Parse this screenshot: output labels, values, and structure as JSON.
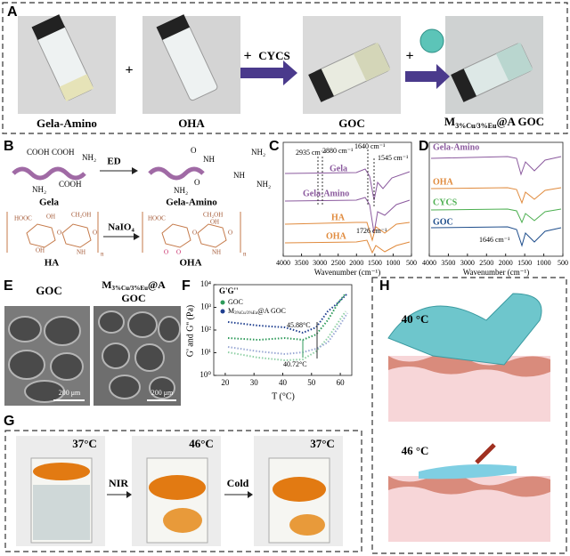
{
  "figure": {
    "A": {
      "label": "A",
      "samples": [
        "Gela-Amino",
        "OHA",
        "GOC"
      ],
      "plus": "+",
      "reagent": "CYCS",
      "composite": {
        "main": "M",
        "sub": "3%Cu/3%Eu",
        "tail": "@A GOC"
      }
    },
    "B": {
      "label": "B",
      "reagent1": "ED",
      "reagent2": "NaIO₄",
      "gela": {
        "name": "Gela",
        "groups": [
          "COOH",
          "COOH",
          "NH₂",
          "NH₂",
          "COOH"
        ]
      },
      "gela_amino": {
        "name": "Gela-Amino",
        "groups": [
          "O",
          "NH",
          "NH₂",
          "NH₂",
          "O",
          "NH",
          "NH₂"
        ]
      },
      "ha": {
        "name": "HA",
        "groups": [
          "HOOC",
          "OH",
          "CH₂OH",
          "O",
          "OH",
          "O",
          "NH",
          "n"
        ]
      },
      "oha": {
        "name": "OHA",
        "groups": [
          "HOOC",
          "CH₂OH",
          "O",
          "O",
          "O",
          "OH",
          "O",
          "NH",
          "n"
        ]
      }
    },
    "C": {
      "label": "C",
      "xlabel": "Wavenumber (cm⁻¹)",
      "xlim": [
        4000,
        500
      ],
      "xticks": [
        4000,
        3500,
        3000,
        2500,
        2000,
        1500,
        1000,
        500
      ],
      "traces": [
        "Gela",
        "Gela-Amino",
        "HA",
        "OHA"
      ],
      "annotations": [
        "2935 cm⁻¹",
        "2880 cm⁻¹",
        "1640 cm⁻¹",
        "1545 cm⁻¹",
        "1726 cm⁻¹"
      ]
    },
    "D": {
      "label": "D",
      "xlabel": "Wavenumber (cm⁻¹)",
      "xlim": [
        4000,
        500
      ],
      "xticks": [
        4000,
        3500,
        3000,
        2500,
        2000,
        1500,
        1000,
        500
      ],
      "traces": [
        "Gela-Amino",
        "OHA",
        "CYCS",
        "GOC"
      ],
      "annotations": [
        "1646 cm⁻¹"
      ]
    },
    "E": {
      "label": "E",
      "titles": [
        "GOC",
        {
          "main": "M",
          "sub": "3%Cu/3%Eu",
          "tail": "@A",
          "line2": "GOC"
        }
      ],
      "scale": [
        "200 μm",
        "200 μm"
      ]
    },
    "F": {
      "label": "F",
      "legend_title": "G'G''",
      "series": [
        "GOC",
        {
          "main": "M",
          "sub": "3%Cu/3%Eu",
          "tail": "@A GOC"
        }
      ],
      "xlabel": "T (°C)",
      "ylabel": "G' and G'' (Pa)",
      "xlim": [
        16,
        64
      ],
      "xticks": [
        20,
        30,
        40,
        50,
        60
      ],
      "ylim": [
        1,
        10000
      ],
      "ylog": true,
      "yticks": [
        {
          "value": 1,
          "label": "10⁰"
        },
        {
          "value": 10,
          "label": "10¹"
        },
        {
          "value": 100,
          "label": "10²"
        },
        {
          "value": 1000,
          "label": "10³"
        },
        {
          "value": 10000,
          "label": "10⁴"
        }
      ],
      "annotations": [
        "45.88°C",
        "40.72°C"
      ]
    },
    "G": {
      "label": "G",
      "states": [
        "37°C",
        "46°C",
        "37°C"
      ],
      "steps": [
        "NIR",
        "Cold"
      ]
    },
    "H": {
      "label": "H",
      "temps": [
        "40 °C",
        "46 °C"
      ]
    }
  }
}
